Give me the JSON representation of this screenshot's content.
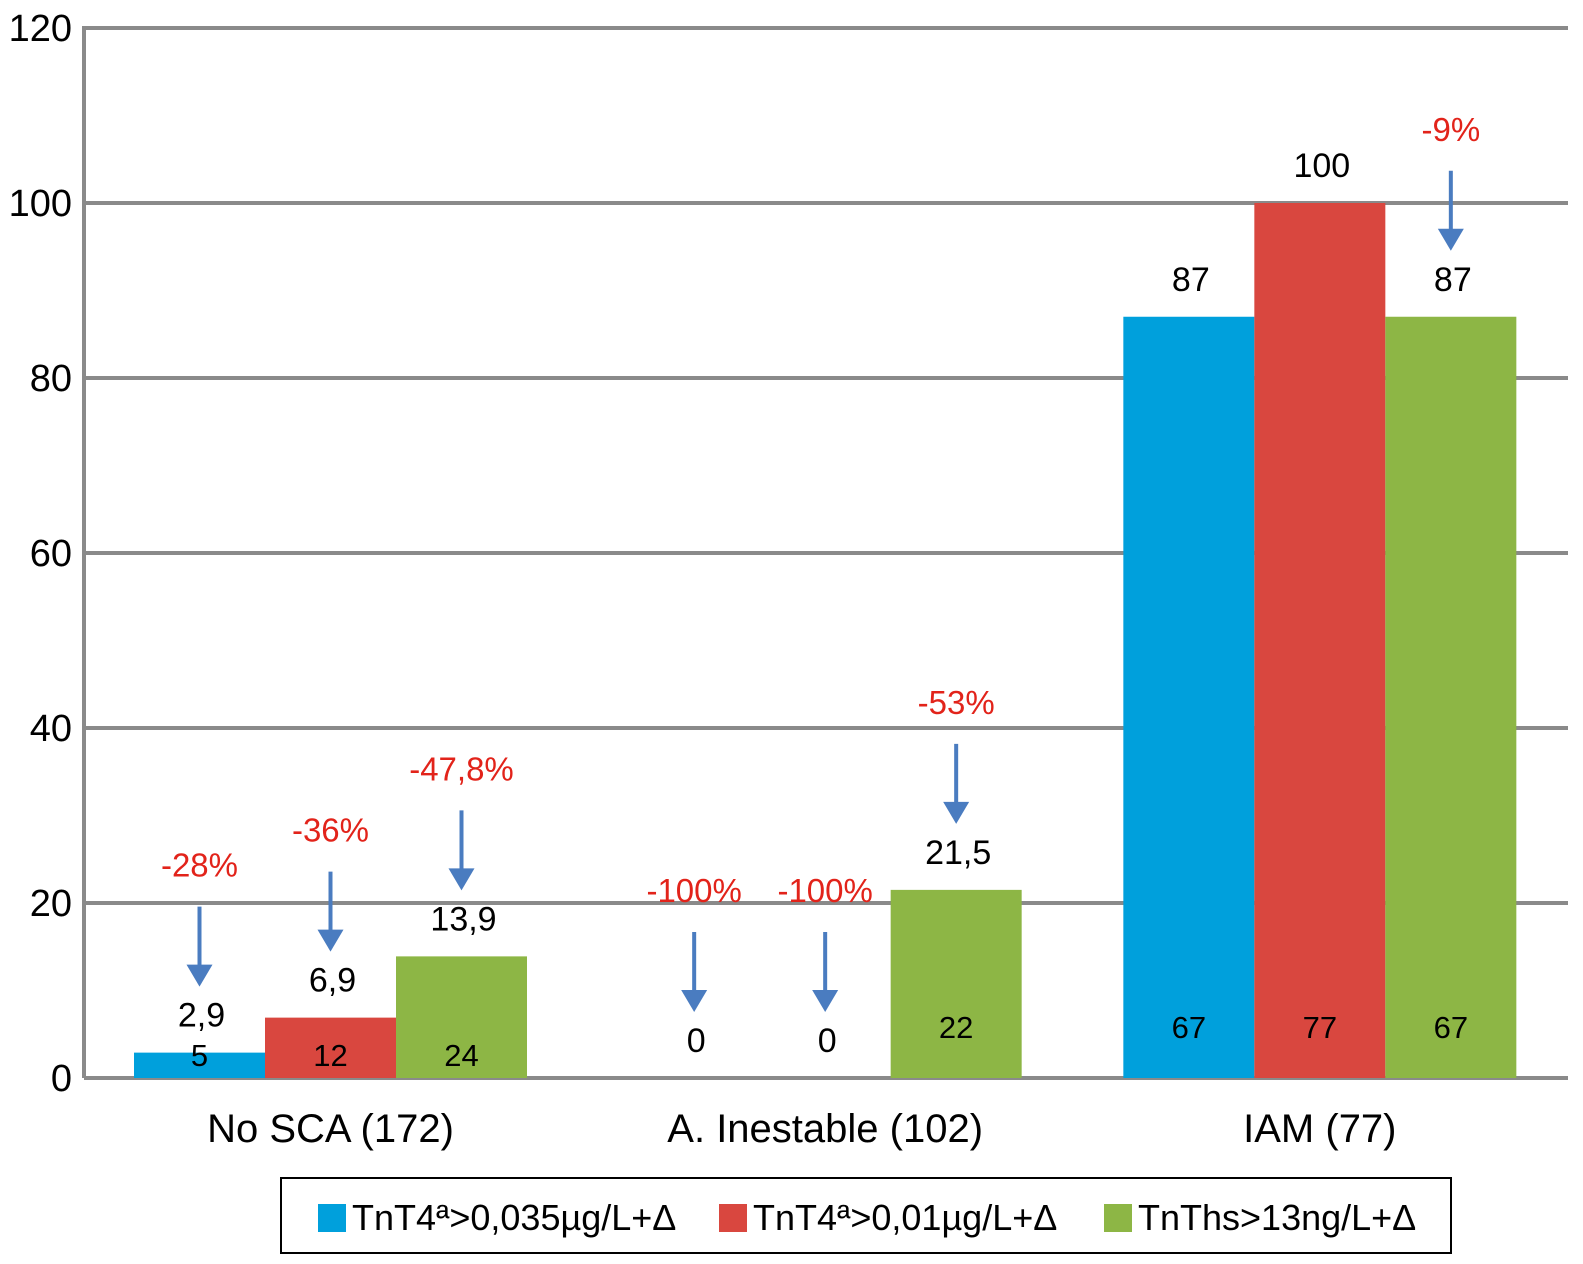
{
  "chart_data": {
    "type": "bar",
    "categories": [
      "No SCA (172)",
      "A. Inestable (102)",
      "IAM (77)"
    ],
    "ylim": [
      0,
      120
    ],
    "yticks": [
      "0",
      "20",
      "40",
      "60",
      "80",
      "100",
      "120"
    ],
    "grid": true,
    "legend_position": "bottom",
    "series": [
      {
        "name": "TnT4ª>0,035µg/L+Δ",
        "color": "#00a0dc",
        "values": [
          2.9,
          0,
          87
        ],
        "value_labels": [
          "2,9",
          "0",
          "87"
        ],
        "inner_labels": [
          "5",
          "",
          "67"
        ],
        "change_labels": [
          "-28%",
          "-100%",
          ""
        ]
      },
      {
        "name": "TnT4ª>0,01µg/L+Δ",
        "color": "#d9473f",
        "values": [
          6.9,
          0,
          100
        ],
        "value_labels": [
          "6,9",
          "0",
          "100"
        ],
        "inner_labels": [
          "12",
          "",
          "77"
        ],
        "change_labels": [
          "-36%",
          "-100%",
          ""
        ]
      },
      {
        "name": "TnThs>13ng/L+Δ",
        "color": "#8db645",
        "values": [
          13.9,
          21.5,
          87
        ],
        "value_labels": [
          "13,9",
          "21,5",
          "87"
        ],
        "inner_labels": [
          "24",
          "22",
          "67"
        ],
        "change_labels": [
          "-47,8%",
          "-53%",
          "-9%"
        ]
      }
    ],
    "annotation_color": "#e2231a",
    "arrow_color": "#4a7cc0"
  }
}
